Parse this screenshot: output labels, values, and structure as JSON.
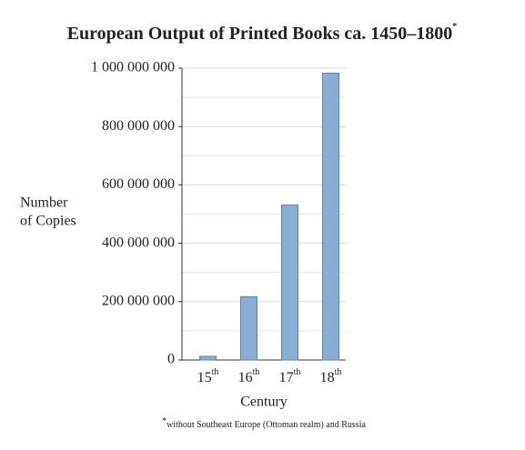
{
  "chart_data": {
    "type": "bar",
    "title": "European Output of Printed Books ca. 1450–1800",
    "title_mark": "*",
    "categories": [
      "15th",
      "16th",
      "17th",
      "18th"
    ],
    "values": [
      12600000,
      217000000,
      531000000,
      983000000
    ],
    "color": "#8aadd3",
    "edge_color": "#5d82ad",
    "ylim": [
      0,
      1000000000
    ],
    "yticks": [
      0,
      {
        "value": 200000000,
        "label": "200 000 000"
      },
      {
        "value": 400000000,
        "label": "400 000 000"
      },
      {
        "value": 600000000,
        "label": "600 000 000"
      },
      {
        "value": 800000000,
        "label": "800 000 000"
      },
      {
        "value": 1000000000,
        "label": "1 000 000 000"
      }
    ],
    "minor_yticks": [
      100000000,
      300000000,
      500000000,
      700000000,
      900000000
    ],
    "grid": true,
    "y_label": [
      "Number",
      "of Copies"
    ],
    "x_label": "Century",
    "footnote_mark": "*",
    "footnote": "without Southeast Europe (Ottoman realm) and Russia"
  }
}
